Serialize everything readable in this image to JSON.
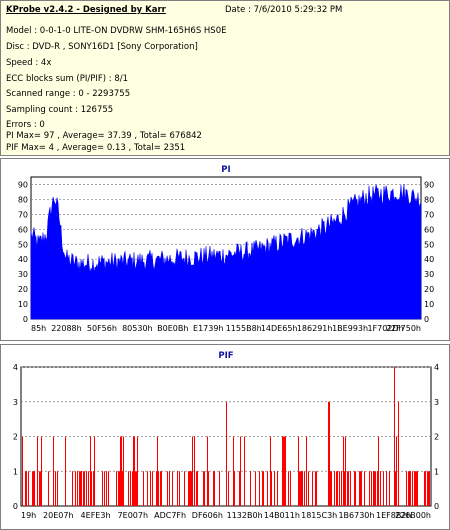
{
  "header": {
    "title": "KProbe v2.4.2 - Designed by Karr",
    "date": "Date : 7/6/2010 5:29:32 PM",
    "lines": [
      "Model : 0-0-1-0 LITE-ON DVDRW SHM-165H6S HS0E",
      "Disc : DVD-R , SONY16D1 [Sony Corporation]",
      "Speed : 4x",
      "ECC blocks sum (PI/PIF) : 8/1",
      "Scanned range : 0 - 2293755",
      "Sampling count : 126755",
      "Errors : 0",
      "PI Max= 97 , Average= 37.39 , Total= 676842",
      "PIF Max= 4 , Average= 0.13 , Total= 2351"
    ]
  },
  "colors": {
    "bars": "#ff0000",
    "pi_fill": "#0000ff",
    "grid": "#808080",
    "title": "#1414a0"
  },
  "chart_data": [
    {
      "type": "area",
      "title": "PI",
      "ylim": [
        0,
        95
      ],
      "yticks": [
        "0",
        "10",
        "20",
        "30",
        "40",
        "50",
        "60",
        "70",
        "80",
        "90"
      ],
      "xticks": [
        "85h",
        "22088h",
        "50F56h",
        "80530h",
        "B0E0Bh",
        "E1739h",
        "1155B8h",
        "14DE65h",
        "186291h",
        "1BE993h",
        "1F702Dh",
        "22F750h"
      ],
      "grid": true,
      "profile": [
        {
          "x": 0.0,
          "y": 55
        },
        {
          "x": 0.02,
          "y": 48
        },
        {
          "x": 0.04,
          "y": 55
        },
        {
          "x": 0.05,
          "y": 70
        },
        {
          "x": 0.06,
          "y": 80
        },
        {
          "x": 0.07,
          "y": 70
        },
        {
          "x": 0.08,
          "y": 50
        },
        {
          "x": 0.09,
          "y": 38
        },
        {
          "x": 0.12,
          "y": 35
        },
        {
          "x": 0.2,
          "y": 36
        },
        {
          "x": 0.3,
          "y": 37
        },
        {
          "x": 0.4,
          "y": 39
        },
        {
          "x": 0.5,
          "y": 41
        },
        {
          "x": 0.58,
          "y": 44
        },
        {
          "x": 0.65,
          "y": 50
        },
        {
          "x": 0.72,
          "y": 55
        },
        {
          "x": 0.78,
          "y": 63
        },
        {
          "x": 0.82,
          "y": 73
        },
        {
          "x": 0.86,
          "y": 80
        },
        {
          "x": 0.9,
          "y": 82
        },
        {
          "x": 0.95,
          "y": 83
        },
        {
          "x": 1.0,
          "y": 78
        }
      ],
      "max": 97
    },
    {
      "type": "bar",
      "title": "PIF",
      "ylim": [
        0,
        4
      ],
      "yticks": [
        "0",
        "1",
        "2",
        "3",
        "4"
      ],
      "xticks": [
        "19h",
        "20E07h",
        "4EFE3h",
        "7E007h",
        "ADC7Fh",
        "DF606h",
        "1132B0h",
        "14B011h",
        "1815C3h",
        "1B6730h",
        "1EF8B2h",
        "226B00h"
      ],
      "grid": true,
      "max": 4,
      "notable": [
        {
          "x": 0.5,
          "y": 3
        },
        {
          "x": 0.75,
          "y": 3
        },
        {
          "x": 0.91,
          "y": 4
        },
        {
          "x": 0.92,
          "y": 3
        }
      ]
    }
  ]
}
